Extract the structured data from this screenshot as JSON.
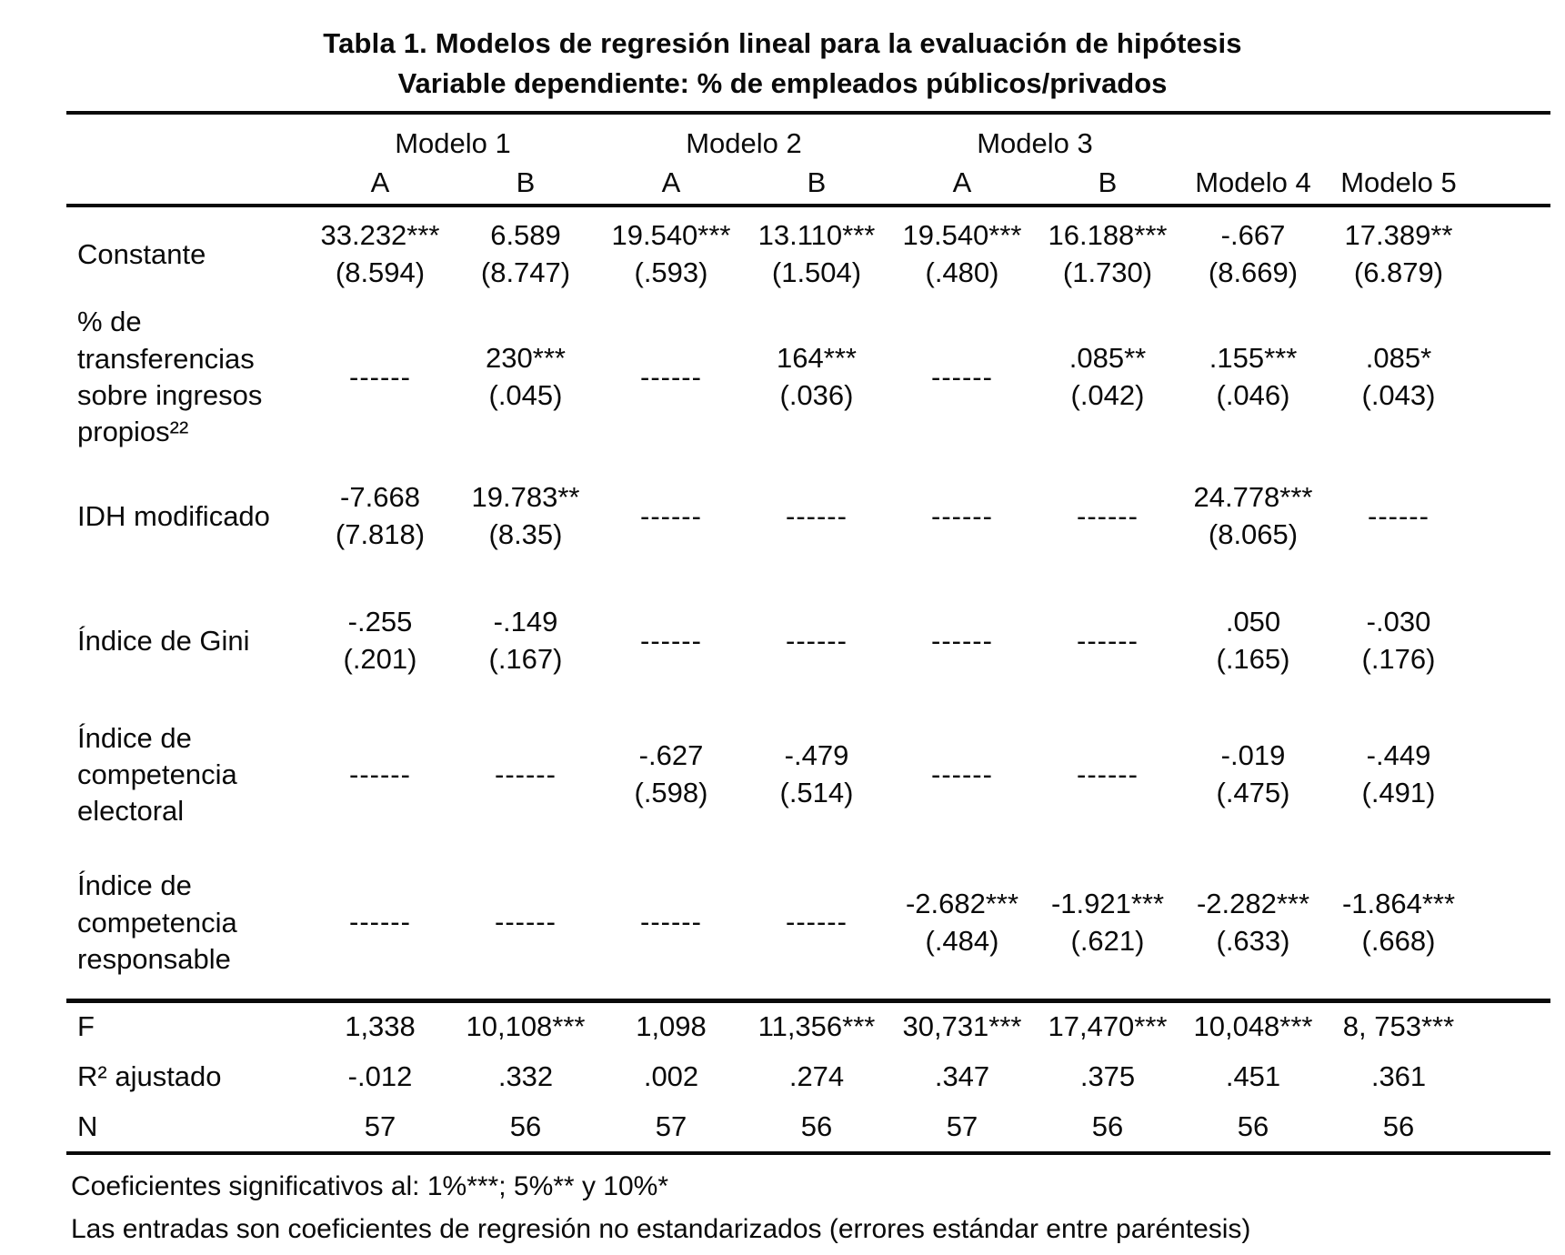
{
  "title": "Tabla 1. Modelos de regresión lineal para la evaluación de hipótesis",
  "subtitle": "Variable dependiente: % de empleados públicos/privados",
  "dash": "------",
  "columns": {
    "groups": [
      "Modelo 1",
      "Modelo 2",
      "Modelo 3"
    ],
    "subheaders": [
      "A",
      "B",
      "A",
      "B",
      "A",
      "B",
      "Modelo 4",
      "Modelo 5"
    ]
  },
  "rows": [
    {
      "label": "Constante",
      "cells": [
        {
          "est": "33.232***",
          "se": "(8.594)"
        },
        {
          "est": "6.589",
          "se": "(8.747)"
        },
        {
          "est": "19.540***",
          "se": "(.593)"
        },
        {
          "est": "13.110***",
          "se": "(1.504)"
        },
        {
          "est": "19.540***",
          "se": "(.480)"
        },
        {
          "est": "16.188***",
          "se": "(1.730)"
        },
        {
          "est": "-.667",
          "se": "(8.669)"
        },
        {
          "est": "17.389**",
          "se": "(6.879)"
        }
      ]
    },
    {
      "label": "% de transferencias sobre ingresos propios²²",
      "cells": [
        {
          "dash": true
        },
        {
          "est": "230***",
          "se": "(.045)"
        },
        {
          "dash": true
        },
        {
          "est": "164***",
          "se": "(.036)"
        },
        {
          "dash": true
        },
        {
          "est": ".085**",
          "se": "(.042)"
        },
        {
          "est": ".155***",
          "se": "(.046)"
        },
        {
          "est": ".085*",
          "se": "(.043)"
        }
      ]
    },
    {
      "label": "IDH modificado",
      "cells": [
        {
          "est": "-7.668",
          "se": "(7.818)"
        },
        {
          "est": "19.783**",
          "se": "(8.35)"
        },
        {
          "dash": true
        },
        {
          "dash": true
        },
        {
          "dash": true
        },
        {
          "dash": true
        },
        {
          "est": "24.778***",
          "se": "(8.065)"
        },
        {
          "dash": true
        }
      ]
    },
    {
      "label": "Índice de Gini",
      "cells": [
        {
          "est": "-.255",
          "se": "(.201)"
        },
        {
          "est": "-.149",
          "se": "(.167)"
        },
        {
          "dash": true
        },
        {
          "dash": true
        },
        {
          "dash": true
        },
        {
          "dash": true
        },
        {
          "est": ".050",
          "se": "(.165)"
        },
        {
          "est": "-.030",
          "se": "(.176)"
        }
      ]
    },
    {
      "label": "Índice de competencia electoral",
      "cells": [
        {
          "dash": true
        },
        {
          "dash": true
        },
        {
          "est": "-.627",
          "se": "(.598)"
        },
        {
          "est": "-.479",
          "se": "(.514)"
        },
        {
          "dash": true
        },
        {
          "dash": true
        },
        {
          "est": "-.019",
          "se": "(.475)"
        },
        {
          "est": "-.449",
          "se": "(.491)"
        }
      ]
    },
    {
      "label": "Índice de competencia responsable",
      "cells": [
        {
          "dash": true
        },
        {
          "dash": true
        },
        {
          "dash": true
        },
        {
          "dash": true
        },
        {
          "est": "-2.682***",
          "se": "(.484)"
        },
        {
          "est": "-1.921***",
          "se": "(.621)"
        },
        {
          "est": "-2.282***",
          "se": "(.633)"
        },
        {
          "est": "-1.864***",
          "se": "(.668)"
        }
      ]
    }
  ],
  "stats": [
    {
      "label": "F",
      "values": [
        "1,338",
        "10,108***",
        "1,098",
        "11,356***",
        "30,731***",
        "17,470***",
        "10,048***",
        "8, 753***"
      ]
    },
    {
      "label": "R² ajustado",
      "values": [
        "-.012",
        ".332",
        ".002",
        ".274",
        ".347",
        ".375",
        ".451",
        ".361"
      ]
    },
    {
      "label": "N",
      "values": [
        "57",
        "56",
        "57",
        "56",
        "57",
        "56",
        "56",
        "56"
      ]
    }
  ],
  "notes": [
    "Coeficientes significativos al: 1%***; 5%** y 10%*",
    "Las entradas son coeficientes de regresión no estandarizados (errores estándar entre paréntesis)"
  ]
}
